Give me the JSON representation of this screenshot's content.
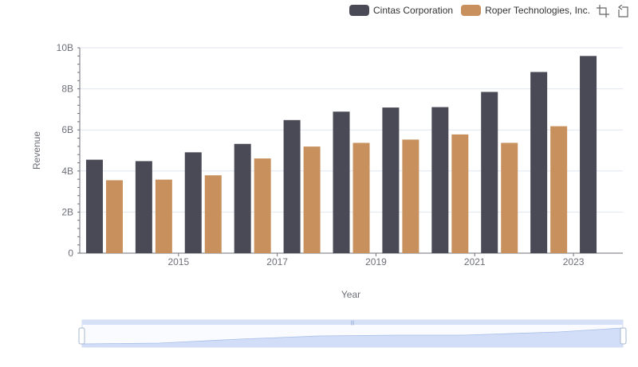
{
  "chart_data": {
    "type": "bar",
    "x": [
      "2014",
      "2015",
      "2016",
      "2017",
      "2018",
      "2019",
      "2020",
      "2021",
      "2022",
      "2023",
      "2024"
    ],
    "x_tick_labels": [
      "2015",
      "2017",
      "2019",
      "2021",
      "2023"
    ],
    "xlabel": "Year",
    "ylabel": "Revenue",
    "ylim": [
      0,
      10000000000
    ],
    "y_tick_labels": [
      "0",
      "2B",
      "4B",
      "6B",
      "8B",
      "10B"
    ],
    "grid": true,
    "legend_position": "top-right",
    "series": [
      {
        "name": "Cintas Corporation",
        "color": "#4a4a56",
        "values": [
          4550000000,
          4480000000,
          4910000000,
          5320000000,
          6480000000,
          6890000000,
          7090000000,
          7110000000,
          7850000000,
          8820000000,
          9600000000
        ]
      },
      {
        "name": "Roper Technologies, Inc.",
        "color": "#c8905c",
        "values": [
          3550000000,
          3580000000,
          3790000000,
          4610000000,
          5190000000,
          5370000000,
          5530000000,
          5780000000,
          5370000000,
          6180000000,
          null
        ]
      }
    ]
  },
  "toolbox": {
    "zoom_icon": "crop-zoom-icon",
    "restore_icon": "restore-icon"
  },
  "colors": {
    "grid": "#e0e6f1",
    "axis": "#6e7079",
    "slider_fill": "#d6e1f8",
    "slider_border": "#d2dbee"
  }
}
